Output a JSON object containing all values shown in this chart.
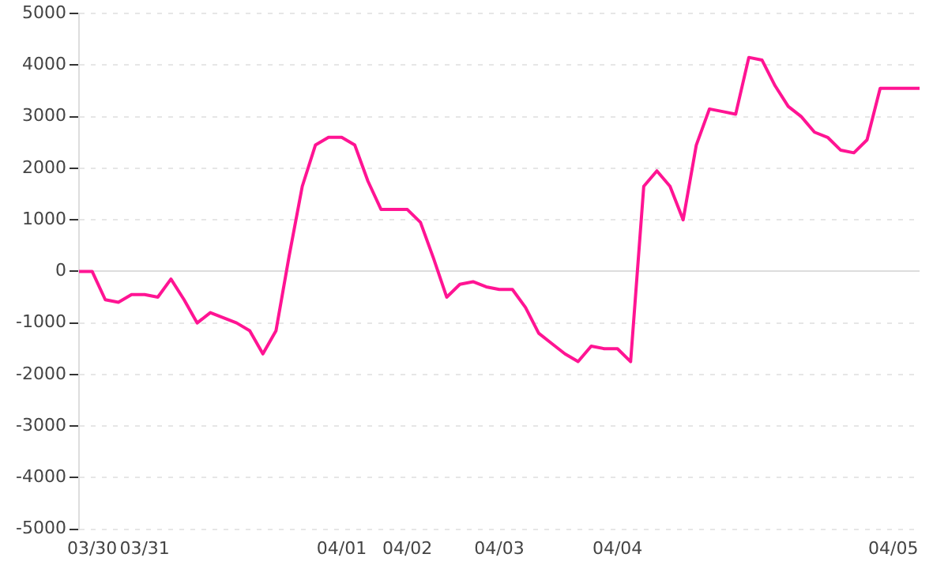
{
  "chart_data": {
    "type": "line",
    "categories": [
      null,
      "03/30",
      null,
      null,
      null,
      "03/31",
      null,
      null,
      null,
      null,
      null,
      null,
      null,
      null,
      null,
      null,
      null,
      null,
      null,
      null,
      "04/01",
      null,
      null,
      null,
      null,
      "04/02",
      null,
      null,
      null,
      null,
      null,
      null,
      "04/03",
      null,
      null,
      null,
      null,
      null,
      null,
      null,
      null,
      "04/04",
      null,
      null,
      null,
      null,
      null,
      null,
      null,
      null,
      null,
      null,
      null,
      null,
      null,
      null,
      null,
      null,
      null,
      null,
      null,
      null,
      "04/05",
      null,
      null
    ],
    "series": [
      {
        "color": "#ff1493",
        "values": [
          0,
          0,
          -550,
          -600,
          -450,
          -450,
          -500,
          -150,
          -550,
          -1000,
          -800,
          -900,
          -1000,
          -1150,
          -1600,
          -1150,
          300,
          1650,
          2450,
          2600,
          2600,
          2450,
          1750,
          1200,
          1200,
          1200,
          950,
          250,
          -500,
          -250,
          -200,
          -300,
          -350,
          -350,
          -700,
          -1200,
          -1400,
          -1600,
          -1750,
          -1450,
          -1500,
          -1500,
          -1750,
          1650,
          1950,
          1650,
          1000,
          2450,
          3150,
          3100,
          3050,
          4150,
          4100,
          3600,
          3200,
          3000,
          2700,
          2600,
          2350,
          2300,
          2550,
          3550,
          3550,
          3550,
          3550
        ]
      }
    ],
    "ylim": [
      -5000,
      5000
    ],
    "yticks": [
      -5000,
      -4000,
      -3000,
      -2000,
      -1000,
      0,
      1000,
      2000,
      3000,
      4000,
      5000
    ],
    "grid": "y",
    "legend": false,
    "marker": "none",
    "line_style": "solid"
  }
}
